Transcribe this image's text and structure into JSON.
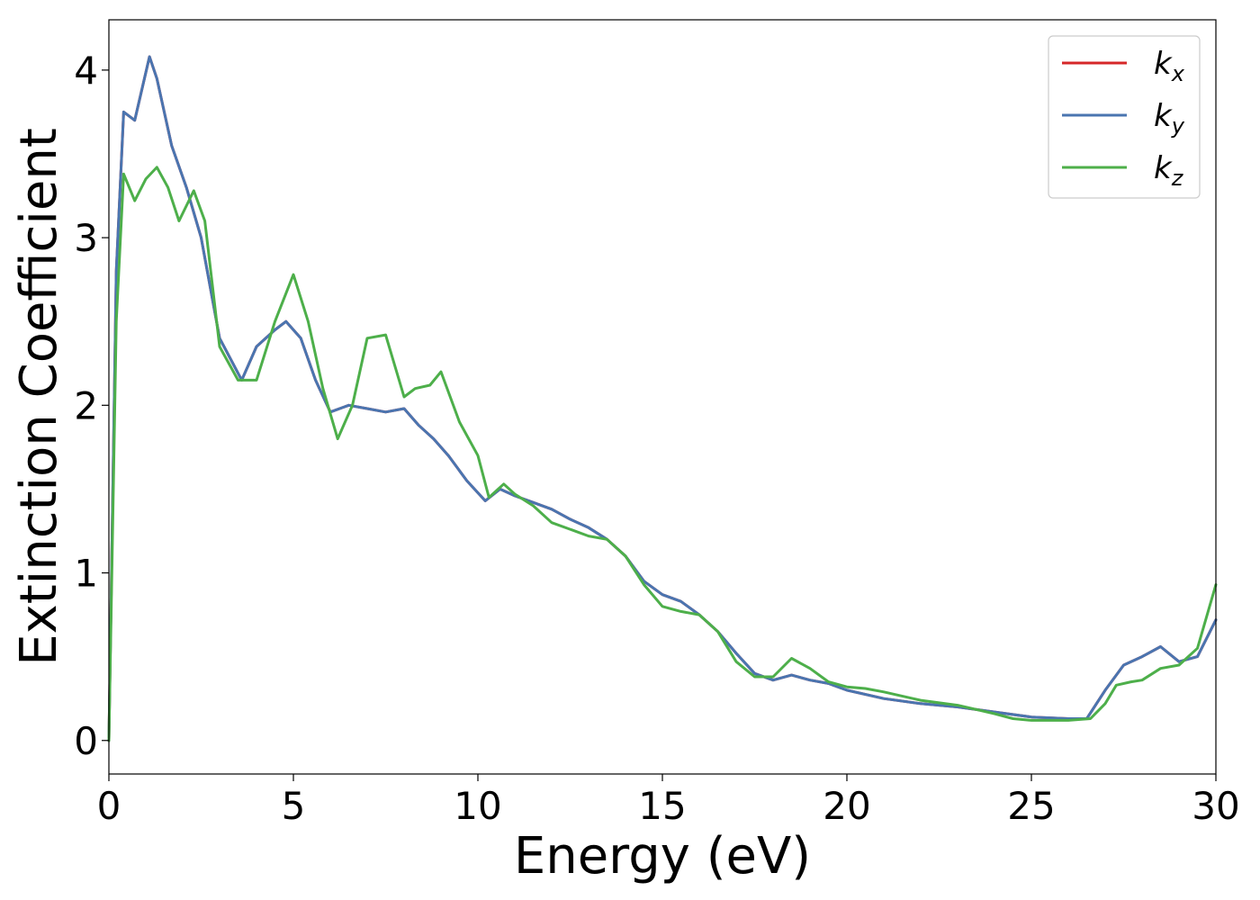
{
  "chart_data": {
    "type": "line",
    "xlabel": "Energy (eV)",
    "ylabel": "Extinction Coefficient",
    "xlim": [
      0,
      30
    ],
    "ylim": [
      -0.2,
      4.3
    ],
    "xticks": [
      0,
      5,
      10,
      15,
      20,
      25,
      30
    ],
    "yticks": [
      0,
      1,
      2,
      3,
      4
    ],
    "grid": false,
    "legend_position": "top-right",
    "series": [
      {
        "name": "k_x",
        "label_main": "k",
        "label_sub": "x",
        "color": "#d62728",
        "x": [
          0,
          0.2,
          0.4,
          0.7,
          1.1,
          1.3,
          1.7,
          2.1,
          2.5,
          3.0,
          3.6,
          4.0,
          4.5,
          4.8,
          5.2,
          5.6,
          6.0,
          6.5,
          7.0,
          7.5,
          8.0,
          8.4,
          8.8,
          9.2,
          9.7,
          10.2,
          10.6,
          11.0,
          11.5,
          12.0,
          12.5,
          13.0,
          13.5,
          14.0,
          14.5,
          15.0,
          15.5,
          16.0,
          16.5,
          17.0,
          17.5,
          18.0,
          18.5,
          19.0,
          19.5,
          20.0,
          21.0,
          22.0,
          23.0,
          24.0,
          25.0,
          26.0,
          26.5,
          27.0,
          27.5,
          28.0,
          28.5,
          29.0,
          29.5,
          30.0
        ],
        "values": [
          0.0,
          2.8,
          3.75,
          3.7,
          4.08,
          3.95,
          3.55,
          3.3,
          3.0,
          2.4,
          2.15,
          2.35,
          2.45,
          2.5,
          2.4,
          2.15,
          1.96,
          2.0,
          1.98,
          1.96,
          1.98,
          1.88,
          1.8,
          1.7,
          1.55,
          1.43,
          1.5,
          1.46,
          1.42,
          1.38,
          1.32,
          1.27,
          1.2,
          1.1,
          0.95,
          0.87,
          0.83,
          0.75,
          0.65,
          0.52,
          0.4,
          0.36,
          0.39,
          0.36,
          0.34,
          0.3,
          0.25,
          0.22,
          0.2,
          0.17,
          0.14,
          0.13,
          0.13,
          0.3,
          0.45,
          0.5,
          0.56,
          0.47,
          0.5,
          0.72
        ]
      },
      {
        "name": "k_y",
        "label_main": "k",
        "label_sub": "y",
        "color": "#4a75b0",
        "x": [
          0,
          0.2,
          0.4,
          0.7,
          1.1,
          1.3,
          1.7,
          2.1,
          2.5,
          3.0,
          3.6,
          4.0,
          4.5,
          4.8,
          5.2,
          5.6,
          6.0,
          6.5,
          7.0,
          7.5,
          8.0,
          8.4,
          8.8,
          9.2,
          9.7,
          10.2,
          10.6,
          11.0,
          11.5,
          12.0,
          12.5,
          13.0,
          13.5,
          14.0,
          14.5,
          15.0,
          15.5,
          16.0,
          16.5,
          17.0,
          17.5,
          18.0,
          18.5,
          19.0,
          19.5,
          20.0,
          21.0,
          22.0,
          23.0,
          24.0,
          25.0,
          26.0,
          26.5,
          27.0,
          27.5,
          28.0,
          28.5,
          29.0,
          29.5,
          30.0
        ],
        "values": [
          0.0,
          2.8,
          3.75,
          3.7,
          4.08,
          3.95,
          3.55,
          3.3,
          3.0,
          2.4,
          2.15,
          2.35,
          2.45,
          2.5,
          2.4,
          2.15,
          1.96,
          2.0,
          1.98,
          1.96,
          1.98,
          1.88,
          1.8,
          1.7,
          1.55,
          1.43,
          1.5,
          1.46,
          1.42,
          1.38,
          1.32,
          1.27,
          1.2,
          1.1,
          0.95,
          0.87,
          0.83,
          0.75,
          0.65,
          0.52,
          0.4,
          0.36,
          0.39,
          0.36,
          0.34,
          0.3,
          0.25,
          0.22,
          0.2,
          0.17,
          0.14,
          0.13,
          0.13,
          0.3,
          0.45,
          0.5,
          0.56,
          0.47,
          0.5,
          0.72
        ]
      },
      {
        "name": "k_z",
        "label_main": "k",
        "label_sub": "z",
        "color": "#4daf4a",
        "x": [
          0,
          0.2,
          0.4,
          0.7,
          1.0,
          1.3,
          1.6,
          1.9,
          2.3,
          2.6,
          3.0,
          3.5,
          4.0,
          4.5,
          5.0,
          5.4,
          5.8,
          6.2,
          6.6,
          7.0,
          7.5,
          8.0,
          8.3,
          8.7,
          9.0,
          9.5,
          10.0,
          10.3,
          10.7,
          11.0,
          11.5,
          12.0,
          12.5,
          13.0,
          13.5,
          14.0,
          14.5,
          15.0,
          15.5,
          16.0,
          16.5,
          17.0,
          17.5,
          18.0,
          18.5,
          19.0,
          19.5,
          20.0,
          20.5,
          21.0,
          22.0,
          23.0,
          24.0,
          24.5,
          25.0,
          26.0,
          26.6,
          27.0,
          27.3,
          27.7,
          28.0,
          28.5,
          29.0,
          29.5,
          30.0
        ],
        "values": [
          0.0,
          2.5,
          3.38,
          3.22,
          3.35,
          3.42,
          3.3,
          3.1,
          3.28,
          3.1,
          2.35,
          2.15,
          2.15,
          2.5,
          2.78,
          2.5,
          2.1,
          1.8,
          2.0,
          2.4,
          2.42,
          2.05,
          2.1,
          2.12,
          2.2,
          1.9,
          1.7,
          1.45,
          1.53,
          1.47,
          1.4,
          1.3,
          1.26,
          1.22,
          1.2,
          1.1,
          0.93,
          0.8,
          0.77,
          0.75,
          0.65,
          0.47,
          0.38,
          0.38,
          0.49,
          0.43,
          0.35,
          0.32,
          0.31,
          0.29,
          0.24,
          0.21,
          0.16,
          0.13,
          0.12,
          0.12,
          0.13,
          0.22,
          0.33,
          0.35,
          0.36,
          0.43,
          0.45,
          0.55,
          0.93
        ]
      }
    ]
  }
}
